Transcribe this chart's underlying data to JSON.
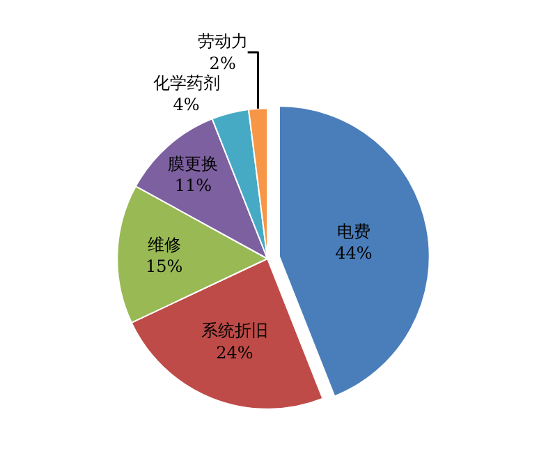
{
  "chart_data": {
    "type": "pie",
    "categories": [
      "电费",
      "系统折旧",
      "维修",
      "膜更换",
      "化学药剂",
      "劳动力"
    ],
    "values": [
      44,
      24,
      15,
      11,
      4,
      2
    ],
    "value_labels": [
      "44%",
      "24%",
      "15%",
      "11%",
      "4%",
      "2%"
    ],
    "colors": [
      "#4a7ebb",
      "#be4b48",
      "#98b954",
      "#7d60a0",
      "#46aac5",
      "#f79646"
    ],
    "legend": false
  }
}
